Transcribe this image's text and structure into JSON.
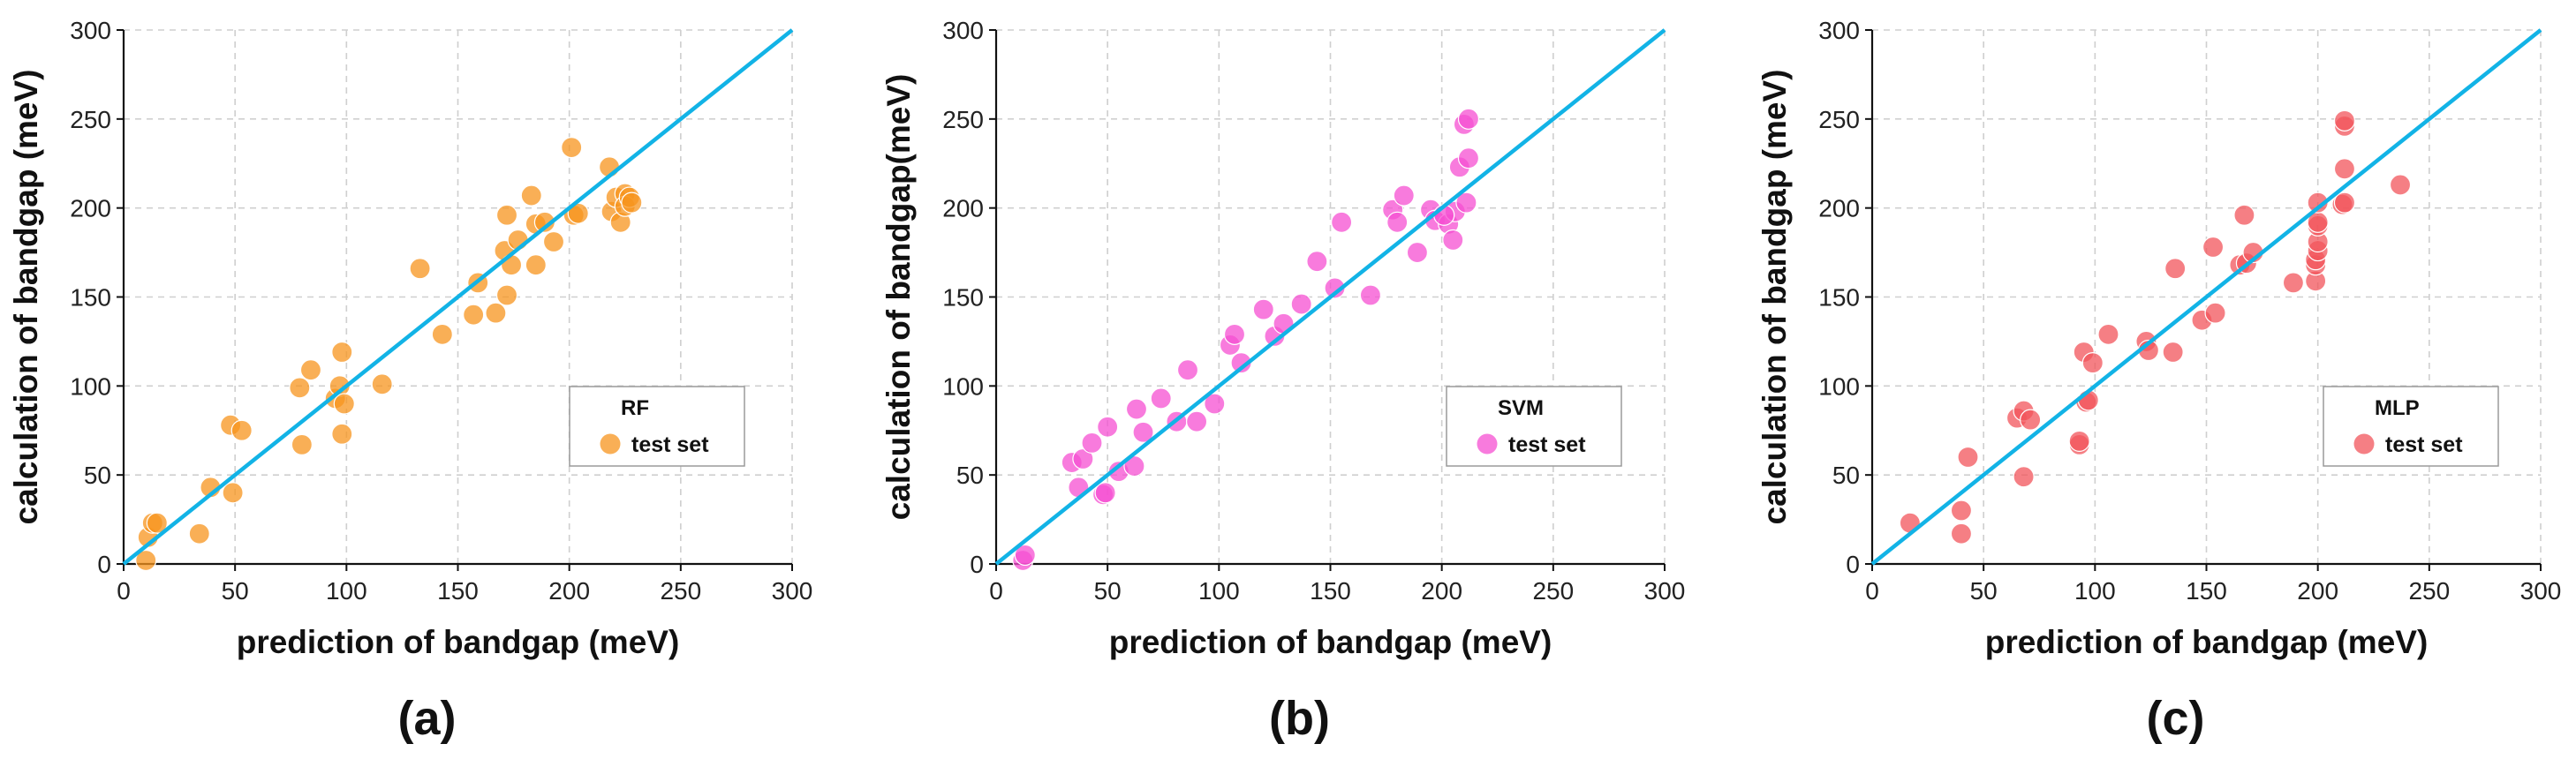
{
  "colors": {
    "rf": "#F7941D",
    "svm": "#F54FD2",
    "mlp": "#F2545B",
    "diagonal": "#12B3E6"
  },
  "chart_data": [
    {
      "type": "scatter",
      "panel_label": "(a)",
      "legend": {
        "title": "RF",
        "entry": "test set"
      },
      "xlabel": "prediction of bandgap  (meV)",
      "ylabel": "calculation of bandgap  (meV)",
      "xlim": [
        0,
        300
      ],
      "ylim": [
        0,
        300
      ],
      "x_ticks": [
        "0",
        "50",
        "100",
        "150",
        "200",
        "250",
        "300"
      ],
      "y_ticks": [
        "0",
        "50",
        "100",
        "150",
        "200",
        "250",
        "300"
      ],
      "grid": true,
      "reference_line": "y = x",
      "color_key": "rf",
      "points": [
        [
          10,
          2
        ],
        [
          11,
          15
        ],
        [
          13,
          23
        ],
        [
          15,
          23
        ],
        [
          34,
          17
        ],
        [
          39,
          43
        ],
        [
          48,
          78
        ],
        [
          49,
          40
        ],
        [
          53,
          75
        ],
        [
          79,
          99
        ],
        [
          80,
          67
        ],
        [
          84,
          109
        ],
        [
          95,
          93
        ],
        [
          97,
          100
        ],
        [
          98,
          73
        ],
        [
          99,
          90
        ],
        [
          98,
          119
        ],
        [
          116,
          101
        ],
        [
          133,
          166
        ],
        [
          143,
          129
        ],
        [
          157,
          140
        ],
        [
          159,
          158
        ],
        [
          167,
          141
        ],
        [
          171,
          176
        ],
        [
          172,
          151
        ],
        [
          172,
          196
        ],
        [
          174,
          168
        ],
        [
          177,
          182
        ],
        [
          183,
          207
        ],
        [
          185,
          168
        ],
        [
          185,
          191
        ],
        [
          189,
          192
        ],
        [
          193,
          181
        ],
        [
          201,
          234
        ],
        [
          202,
          196
        ],
        [
          204,
          197
        ],
        [
          218,
          223
        ],
        [
          219,
          198
        ],
        [
          221,
          206
        ],
        [
          223,
          192
        ],
        [
          225,
          208
        ],
        [
          225,
          201
        ],
        [
          227,
          206
        ],
        [
          228,
          203
        ]
      ]
    },
    {
      "type": "scatter",
      "panel_label": "(b)",
      "legend": {
        "title": "SVM",
        "entry": "test set"
      },
      "xlabel": "prediction of bandgap  (meV)",
      "ylabel": "calculation of bandgap(meV)",
      "xlim": [
        0,
        300
      ],
      "ylim": [
        0,
        300
      ],
      "x_ticks": [
        "0",
        "50",
        "100",
        "150",
        "200",
        "250",
        "300"
      ],
      "y_ticks": [
        "0",
        "50",
        "100",
        "150",
        "200",
        "250",
        "300"
      ],
      "grid": true,
      "reference_line": "y = x",
      "color_key": "svm",
      "points": [
        [
          12,
          2
        ],
        [
          13,
          5
        ],
        [
          34,
          57
        ],
        [
          37,
          43
        ],
        [
          39,
          59
        ],
        [
          43,
          68
        ],
        [
          48,
          39
        ],
        [
          49,
          40
        ],
        [
          50,
          77
        ],
        [
          55,
          52
        ],
        [
          62,
          55
        ],
        [
          63,
          87
        ],
        [
          66,
          74
        ],
        [
          74,
          93
        ],
        [
          81,
          80
        ],
        [
          86,
          109
        ],
        [
          90,
          80
        ],
        [
          98,
          90
        ],
        [
          105,
          123
        ],
        [
          107,
          129
        ],
        [
          110,
          113
        ],
        [
          120,
          143
        ],
        [
          125,
          128
        ],
        [
          129,
          135
        ],
        [
          137,
          146
        ],
        [
          144,
          170
        ],
        [
          152,
          155
        ],
        [
          155,
          192
        ],
        [
          168,
          151
        ],
        [
          178,
          199
        ],
        [
          180,
          192
        ],
        [
          183,
          207
        ],
        [
          189,
          175
        ],
        [
          195,
          199
        ],
        [
          197,
          193
        ],
        [
          203,
          191
        ],
        [
          205,
          182
        ],
        [
          206,
          198
        ],
        [
          208,
          223
        ],
        [
          210,
          247
        ],
        [
          211,
          203
        ],
        [
          212,
          250
        ],
        [
          212,
          228
        ],
        [
          201,
          196
        ]
      ]
    },
    {
      "type": "scatter",
      "panel_label": "(c)",
      "legend": {
        "title": "MLP",
        "entry": "test set"
      },
      "xlabel": "prediction of bandgap  (meV)",
      "ylabel": "calculation of bandgap  (meV)",
      "xlim": [
        0,
        300
      ],
      "ylim": [
        0,
        300
      ],
      "x_ticks": [
        "0",
        "50",
        "100",
        "150",
        "200",
        "250",
        "300"
      ],
      "y_ticks": [
        "0",
        "50",
        "100",
        "150",
        "200",
        "250",
        "300"
      ],
      "grid": true,
      "reference_line": "y = x",
      "color_key": "mlp",
      "points": [
        [
          17,
          23
        ],
        [
          40,
          17
        ],
        [
          40,
          30
        ],
        [
          43,
          60
        ],
        [
          65,
          82
        ],
        [
          68,
          49
        ],
        [
          68,
          86
        ],
        [
          71,
          81
        ],
        [
          93,
          67
        ],
        [
          93,
          69
        ],
        [
          95,
          119
        ],
        [
          96,
          91
        ],
        [
          97,
          92
        ],
        [
          99,
          113
        ],
        [
          106,
          129
        ],
        [
          123,
          125
        ],
        [
          124,
          120
        ],
        [
          135,
          119
        ],
        [
          136,
          166
        ],
        [
          148,
          137
        ],
        [
          153,
          178
        ],
        [
          154,
          141
        ],
        [
          165,
          168
        ],
        [
          167,
          196
        ],
        [
          168,
          169
        ],
        [
          171,
          175
        ],
        [
          189,
          158
        ],
        [
          199,
          159
        ],
        [
          199,
          168
        ],
        [
          199,
          171
        ],
        [
          200,
          176
        ],
        [
          200,
          181
        ],
        [
          200,
          190
        ],
        [
          200,
          192
        ],
        [
          200,
          203
        ],
        [
          211,
          202
        ],
        [
          212,
          203
        ],
        [
          212,
          222
        ],
        [
          212,
          246
        ],
        [
          212,
          249
        ],
        [
          237,
          213
        ]
      ]
    }
  ]
}
